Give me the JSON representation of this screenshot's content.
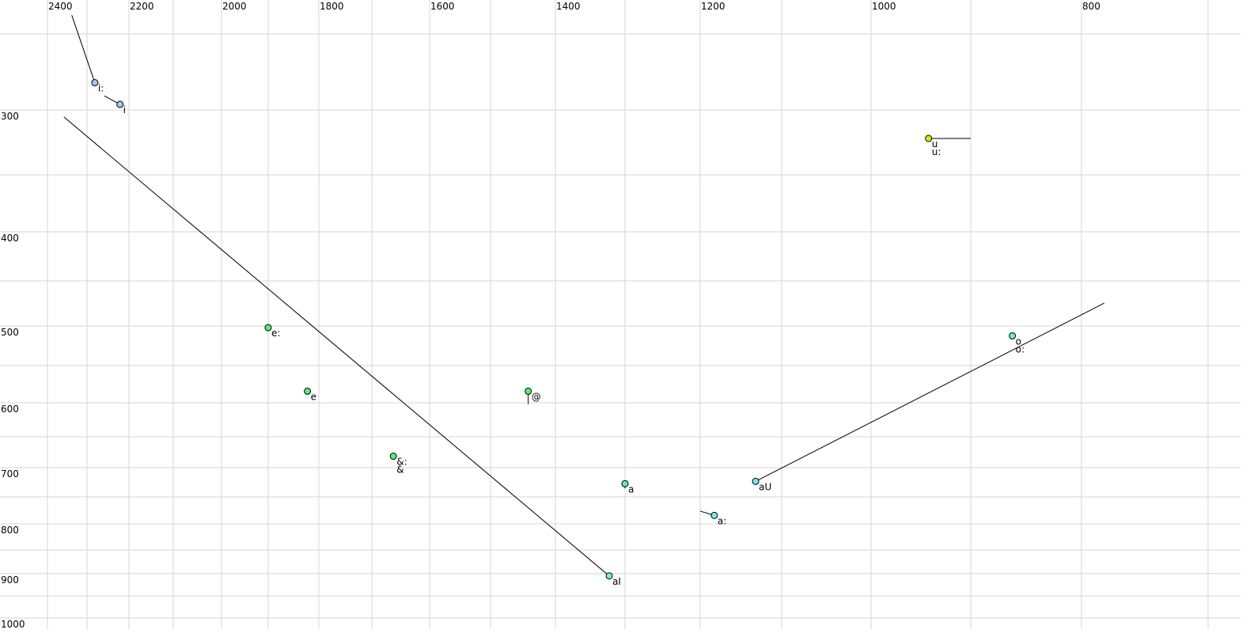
{
  "chart_data": {
    "type": "scatter",
    "title": "",
    "xlabel": "",
    "ylabel": "",
    "x_axis": {
      "reversed": true,
      "scale": "log",
      "range": [
        2420,
        690
      ],
      "tick_labels": [
        "2400",
        "2200",
        "2000",
        "1800",
        "1600",
        "1400",
        "1200",
        "1000",
        "800"
      ],
      "grid_values": [
        2400,
        2300,
        2200,
        2100,
        2000,
        1900,
        1800,
        1700,
        1600,
        1500,
        1400,
        1300,
        1200,
        1100,
        1000,
        900,
        800,
        700
      ]
    },
    "y_axis": {
      "reversed": true,
      "scale": "log",
      "range": [
        238,
        1010
      ],
      "tick_labels": [
        "300",
        "400",
        "500",
        "600",
        "700",
        "800",
        "900",
        "1000"
      ],
      "grid_values": [
        250,
        300,
        350,
        400,
        450,
        500,
        550,
        600,
        650,
        700,
        750,
        800,
        850,
        900,
        950,
        1000
      ]
    },
    "grid": true,
    "colors": {
      "i": "#a8c4ff",
      "u": "#c8f000",
      "e": "#50f078",
      "a": "#5cf0b0",
      "diph": "#78e8f4",
      "o": "#60f0cc",
      "grid": "#d4d4d4"
    },
    "points": [
      {
        "labels": [
          "i:"
        ],
        "f2": 2281,
        "f1": 281,
        "color": "i",
        "trajectory_from": [
          2338,
          239
        ]
      },
      {
        "labels": [
          "i"
        ],
        "f2": 2221,
        "f1": 296,
        "color": "i",
        "trajectory_from": [
          2258,
          290
        ]
      },
      {
        "labels": [
          "u",
          "u:"
        ],
        "f2": 941,
        "f1": 321,
        "color": "u",
        "trajectory_from": [
          900,
          321
        ]
      },
      {
        "labels": [
          "e:"
        ],
        "f2": 1900,
        "f1": 502,
        "color": "e"
      },
      {
        "labels": [
          "e"
        ],
        "f2": 1822,
        "f1": 584,
        "color": "e"
      },
      {
        "labels": [
          "&:",
          "&"
        ],
        "f2": 1662,
        "f1": 681,
        "color": "e"
      },
      {
        "labels": [
          "@"
        ],
        "f2": 1441,
        "f1": 584,
        "color": "e",
        "trajectory_from": [
          1441,
          602
        ]
      },
      {
        "labels": [
          "a"
        ],
        "f2": 1300,
        "f1": 727,
        "color": "a",
        "trajectory_from": [
          1300,
          735
        ]
      },
      {
        "labels": [
          "aI"
        ],
        "f2": 1322,
        "f1": 905,
        "color": "diph",
        "trajectory_from": [
          2358,
          305
        ]
      },
      {
        "labels": [
          "a:"
        ],
        "f2": 1182,
        "f1": 784,
        "color": "diph",
        "trajectory_from": [
          1200,
          776
        ]
      },
      {
        "labels": [
          "aU"
        ],
        "f2": 1131,
        "f1": 723,
        "color": "diph",
        "trajectory_from": [
          781,
          474
        ]
      },
      {
        "labels": [
          "o",
          "o:"
        ],
        "f2": 861,
        "f1": 512,
        "color": "o"
      }
    ]
  }
}
